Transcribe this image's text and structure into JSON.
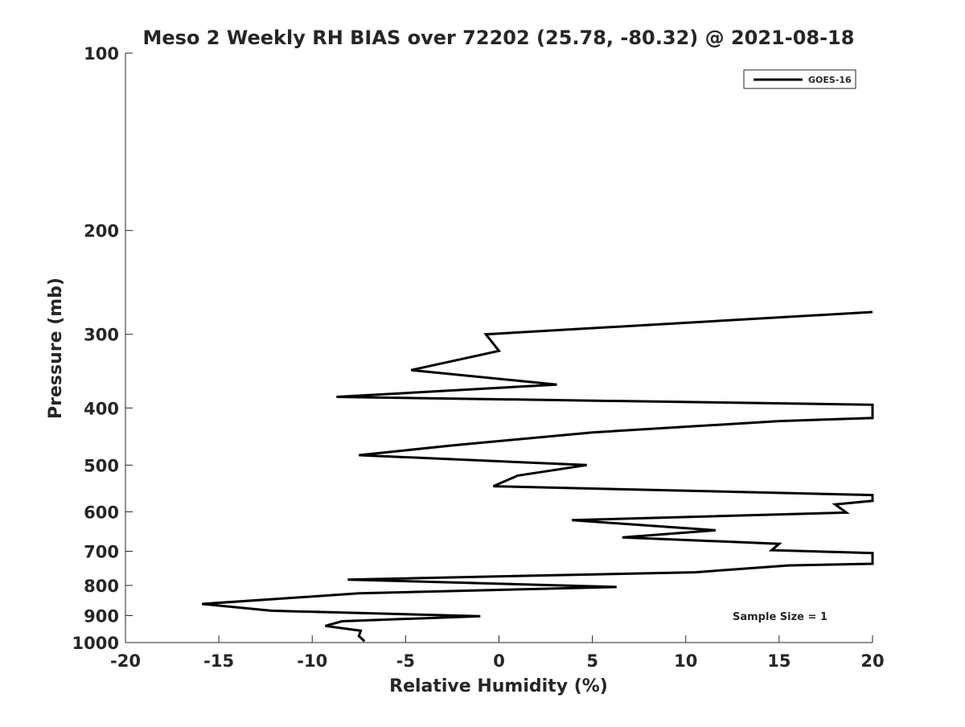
{
  "chart_data": {
    "type": "line",
    "title": "Meso 2 Weekly RH BIAS over 72202 (25.78, -80.32) @ 2021-08-18",
    "xlabel": "Relative Humidity (%)",
    "ylabel": "Pressure (mb)",
    "xlim": [
      -20,
      20
    ],
    "ylim": [
      100,
      1000
    ],
    "yscale": "log",
    "y_reversed": true,
    "xticks": [
      -20,
      -15,
      -10,
      -5,
      0,
      5,
      10,
      15,
      20
    ],
    "xtick_labels": [
      "-20",
      "-15",
      "-10",
      "-5",
      "0",
      "5",
      "10",
      "15",
      "20"
    ],
    "yticks": [
      100,
      200,
      300,
      400,
      500,
      600,
      700,
      800,
      900,
      1000
    ],
    "ytick_labels": [
      "100",
      "200",
      "300",
      "400",
      "500",
      "600",
      "700",
      "800",
      "900",
      "1000"
    ],
    "grid": false,
    "legend_position": "top-right",
    "annotation": "Sample Size = 1",
    "series": [
      {
        "name": "GOES-16",
        "color": "#000000",
        "points": [
          {
            "x": 20.0,
            "y": 275
          },
          {
            "x": -0.7,
            "y": 300
          },
          {
            "x": 0.0,
            "y": 320
          },
          {
            "x": -4.7,
            "y": 345
          },
          {
            "x": 3.1,
            "y": 365
          },
          {
            "x": -8.7,
            "y": 383
          },
          {
            "x": 20.0,
            "y": 395
          },
          {
            "x": 20.0,
            "y": 416
          },
          {
            "x": 15.0,
            "y": 421
          },
          {
            "x": 5.0,
            "y": 440
          },
          {
            "x": -2.5,
            "y": 463
          },
          {
            "x": -7.5,
            "y": 481
          },
          {
            "x": 4.7,
            "y": 500
          },
          {
            "x": 1.0,
            "y": 521
          },
          {
            "x": -0.3,
            "y": 543
          },
          {
            "x": 20.0,
            "y": 562
          },
          {
            "x": 20.0,
            "y": 575
          },
          {
            "x": 18.0,
            "y": 583
          },
          {
            "x": 18.6,
            "y": 602
          },
          {
            "x": 3.9,
            "y": 620
          },
          {
            "x": 11.6,
            "y": 645
          },
          {
            "x": 6.6,
            "y": 663
          },
          {
            "x": 15.0,
            "y": 680
          },
          {
            "x": 14.6,
            "y": 697
          },
          {
            "x": 20.0,
            "y": 705
          },
          {
            "x": 20.0,
            "y": 735
          },
          {
            "x": 15.5,
            "y": 740
          },
          {
            "x": 10.5,
            "y": 760
          },
          {
            "x": -8.1,
            "y": 782
          },
          {
            "x": 6.3,
            "y": 805
          },
          {
            "x": -7.5,
            "y": 825
          },
          {
            "x": -15.9,
            "y": 860
          },
          {
            "x": -12.2,
            "y": 883
          },
          {
            "x": -1.0,
            "y": 902
          },
          {
            "x": -8.4,
            "y": 920
          },
          {
            "x": -9.3,
            "y": 937
          },
          {
            "x": -7.4,
            "y": 955
          },
          {
            "x": -7.5,
            "y": 975
          },
          {
            "x": -7.2,
            "y": 995
          }
        ]
      }
    ]
  }
}
